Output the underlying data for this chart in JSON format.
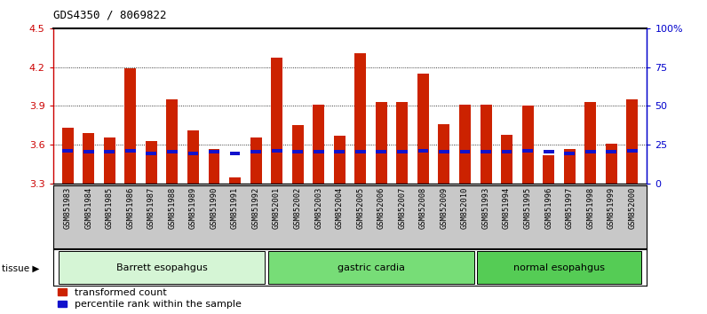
{
  "title": "GDS4350 / 8069822",
  "samples": [
    "GSM851983",
    "GSM851984",
    "GSM851985",
    "GSM851986",
    "GSM851987",
    "GSM851988",
    "GSM851989",
    "GSM851990",
    "GSM851991",
    "GSM851992",
    "GSM852001",
    "GSM852002",
    "GSM852003",
    "GSM852004",
    "GSM852005",
    "GSM852006",
    "GSM852007",
    "GSM852008",
    "GSM852009",
    "GSM852010",
    "GSM851993",
    "GSM851994",
    "GSM851995",
    "GSM851996",
    "GSM851997",
    "GSM851998",
    "GSM851999",
    "GSM852000"
  ],
  "red_values": [
    3.73,
    3.69,
    3.66,
    4.19,
    3.63,
    3.95,
    3.71,
    3.57,
    3.35,
    3.66,
    4.27,
    3.75,
    3.91,
    3.67,
    4.31,
    3.93,
    3.93,
    4.15,
    3.76,
    3.91,
    3.91,
    3.68,
    3.9,
    3.52,
    3.57,
    3.93,
    3.61,
    3.95
  ],
  "blue_values": [
    3.555,
    3.545,
    3.545,
    3.555,
    3.535,
    3.545,
    3.535,
    3.545,
    3.535,
    3.545,
    3.555,
    3.545,
    3.545,
    3.545,
    3.545,
    3.545,
    3.545,
    3.555,
    3.545,
    3.545,
    3.545,
    3.545,
    3.555,
    3.545,
    3.535,
    3.545,
    3.545,
    3.555
  ],
  "groups": [
    {
      "label": "Barrett esopahgus",
      "start": 0,
      "end": 9,
      "color": "#d5f5d5"
    },
    {
      "label": "gastric cardia",
      "start": 10,
      "end": 19,
      "color": "#77dd77"
    },
    {
      "label": "normal esopahgus",
      "start": 20,
      "end": 27,
      "color": "#55cc55"
    }
  ],
  "ymin": 3.3,
  "ymax": 4.5,
  "yticks": [
    3.3,
    3.6,
    3.9,
    4.2,
    4.5
  ],
  "y2ticks": [
    0,
    25,
    50,
    75,
    100
  ],
  "y2labels": [
    "0",
    "25",
    "50",
    "75",
    "100%"
  ],
  "bar_color_red": "#cc2200",
  "bar_color_blue": "#1111cc",
  "bar_width": 0.55,
  "blue_bar_width": 0.5,
  "blue_bar_height": 0.028,
  "tick_color_left": "#cc0000",
  "tick_color_right": "#0000cc",
  "title_fontsize": 9,
  "tick_label_fontsize": 8,
  "legend_fontsize": 8,
  "group_label_fontsize": 8
}
